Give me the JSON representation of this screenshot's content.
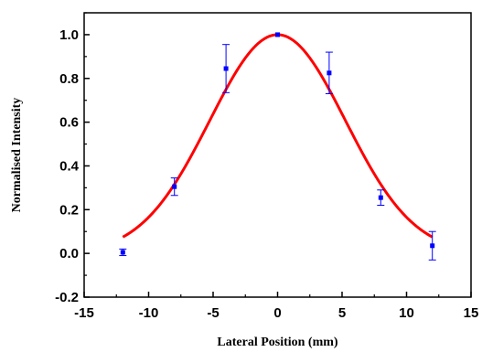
{
  "chart_data": {
    "type": "scatter",
    "xlabel": "Lateral Position (mm)",
    "ylabel": "Normalised Intensity",
    "xlim": [
      -15,
      15
    ],
    "ylim": [
      -0.2,
      1.1
    ],
    "x_ticks": [
      -15,
      -10,
      -5,
      0,
      5,
      10,
      15
    ],
    "y_ticks": [
      -0.2,
      0.0,
      0.2,
      0.4,
      0.6,
      0.8,
      1.0
    ],
    "x_tick_labels": [
      "-15",
      "-10",
      "-5",
      "0",
      "5",
      "10",
      "15"
    ],
    "y_tick_labels": [
      "-0.2",
      "0.0",
      "0.2",
      "0.4",
      "0.6",
      "0.8",
      "1.0"
    ],
    "grid": false,
    "legend": "none",
    "series": [
      {
        "x": [
          -12,
          -8,
          -4,
          0,
          4,
          8,
          12
        ],
        "y": [
          0.005,
          0.305,
          0.845,
          1.0,
          0.825,
          0.255,
          0.035
        ],
        "yerr": [
          0.015,
          0.04,
          0.11,
          0.0,
          0.095,
          0.035,
          0.065
        ],
        "marker_color": "#0000ff",
        "errorbar_color": "#0000ff"
      }
    ],
    "fit_curve": {
      "model": "gaussian",
      "amplitude": 1.0,
      "center": 0,
      "sigma": 5.27,
      "color": "#ff0000"
    }
  }
}
